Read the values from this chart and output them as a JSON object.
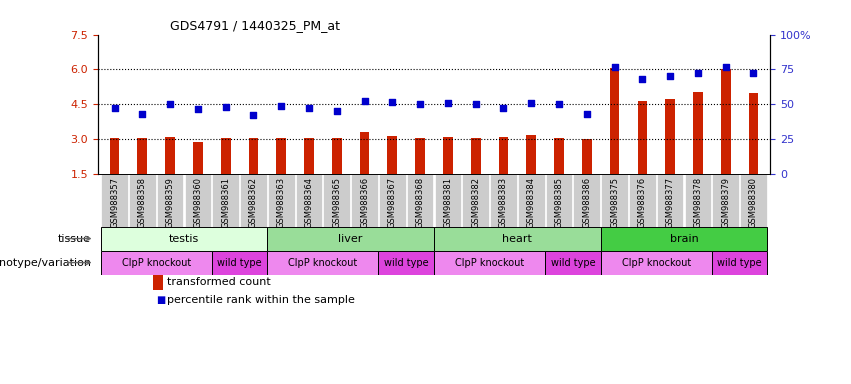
{
  "title": "GDS4791 / 1440325_PM_at",
  "samples": [
    "GSM988357",
    "GSM988358",
    "GSM988359",
    "GSM988360",
    "GSM988361",
    "GSM988362",
    "GSM988363",
    "GSM988364",
    "GSM988365",
    "GSM988366",
    "GSM988367",
    "GSM988368",
    "GSM988381",
    "GSM988382",
    "GSM988383",
    "GSM988384",
    "GSM988385",
    "GSM988386",
    "GSM988375",
    "GSM988376",
    "GSM988377",
    "GSM988378",
    "GSM988379",
    "GSM988380"
  ],
  "bar_values": [
    3.05,
    3.05,
    3.1,
    2.9,
    3.05,
    3.05,
    3.05,
    3.05,
    3.05,
    3.3,
    3.15,
    3.05,
    3.1,
    3.05,
    3.1,
    3.2,
    3.05,
    3.0,
    6.05,
    4.65,
    4.75,
    5.05,
    6.0,
    5.0
  ],
  "dot_values": [
    4.35,
    4.1,
    4.5,
    4.3,
    4.4,
    4.05,
    4.45,
    4.35,
    4.2,
    4.65,
    4.6,
    4.5,
    4.55,
    4.5,
    4.35,
    4.55,
    4.5,
    4.1,
    6.1,
    5.6,
    5.7,
    5.85,
    6.1,
    5.85
  ],
  "ylim": [
    1.5,
    7.5
  ],
  "yticks_left": [
    1.5,
    3.0,
    4.5,
    6.0,
    7.5
  ],
  "yticks_right_labels": [
    "0",
    "25",
    "50",
    "75",
    "100%"
  ],
  "yticks_right_vals": [
    1.5,
    3.0,
    4.5,
    6.0,
    7.5
  ],
  "hlines": [
    3.0,
    4.5,
    6.0
  ],
  "bar_color": "#cc2200",
  "dot_color": "#0000cc",
  "left_tick_color": "#cc2200",
  "right_tick_color": "#3333cc",
  "tissues": [
    {
      "label": "testis",
      "start": 0,
      "end": 6,
      "color": "#ddffdd"
    },
    {
      "label": "liver",
      "start": 6,
      "end": 12,
      "color": "#99dd99"
    },
    {
      "label": "heart",
      "start": 12,
      "end": 18,
      "color": "#99dd99"
    },
    {
      "label": "brain",
      "start": 18,
      "end": 24,
      "color": "#44cc44"
    }
  ],
  "genotypes": [
    {
      "label": "ClpP knockout",
      "start": 0,
      "end": 4,
      "color": "#ee88ee"
    },
    {
      "label": "wild type",
      "start": 4,
      "end": 6,
      "color": "#dd44dd"
    },
    {
      "label": "ClpP knockout",
      "start": 6,
      "end": 10,
      "color": "#ee88ee"
    },
    {
      "label": "wild type",
      "start": 10,
      "end": 12,
      "color": "#dd44dd"
    },
    {
      "label": "ClpP knockout",
      "start": 12,
      "end": 16,
      "color": "#ee88ee"
    },
    {
      "label": "wild type",
      "start": 16,
      "end": 18,
      "color": "#dd44dd"
    },
    {
      "label": "ClpP knockout",
      "start": 18,
      "end": 22,
      "color": "#ee88ee"
    },
    {
      "label": "wild type",
      "start": 22,
      "end": 24,
      "color": "#dd44dd"
    }
  ],
  "legend_bar_label": "transformed count",
  "legend_dot_label": "percentile rank within the sample",
  "tissue_label": "tissue",
  "genotype_label": "genotype/variation",
  "fig_width": 8.51,
  "fig_height": 3.84,
  "xtick_bg": "#cccccc",
  "plot_area_bg": "#ffffff",
  "bar_width": 0.35
}
